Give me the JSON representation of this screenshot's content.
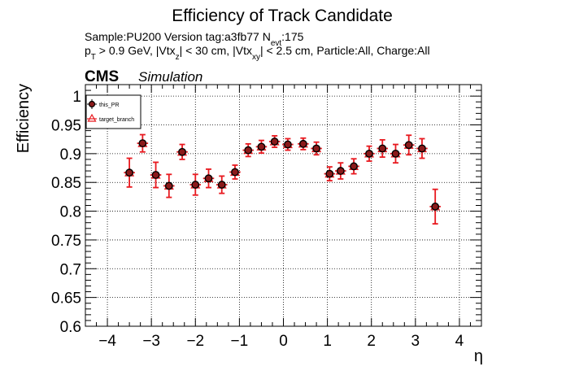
{
  "title": "Efficiency of Track Candidate",
  "info": {
    "line1_prefix": "Sample:PU200   Version tag:a3fb77  N",
    "line1_sub": "evt",
    "line1_suffix": ":175",
    "line2_p": "p",
    "line2_p_sub": "T",
    "line2_a": " > 0.9 GeV, |Vtx",
    "line2_a_sub": "z",
    "line2_b": "| < 30 cm, |Vtx",
    "line2_b_sub": "xy",
    "line2_c": "| < 2.5 cm, Particle:All, Charge:All"
  },
  "cms_label": "CMS",
  "simulation_label": "Simulation",
  "colors": {
    "series_this_pr": "#000000",
    "series_target": "#e8191f",
    "marker_fill": "#8b1a1a"
  },
  "chart_data": {
    "type": "scatter",
    "title": "Efficiency of Track Candidate",
    "xlabel": "η",
    "ylabel": "Efficiency",
    "xlim": [
      -4.5,
      4.5
    ],
    "ylim": [
      0.6,
      1.02
    ],
    "grid": true,
    "legend_position": "top-left",
    "x_ticks": [
      -4,
      -3,
      -2,
      -1,
      0,
      1,
      2,
      3,
      4
    ],
    "x_tick_labels": [
      "−4",
      "−3",
      "−2",
      "−1",
      "0",
      "1",
      "2",
      "3",
      "4"
    ],
    "y_ticks": [
      0.6,
      0.65,
      0.7,
      0.75,
      0.8,
      0.85,
      0.9,
      0.95,
      1
    ],
    "y_tick_labels": [
      "0.6",
      "0.65",
      "0.7",
      "0.75",
      "0.8",
      "0.85",
      "0.9",
      "0.95",
      "1"
    ],
    "bin_half_width": 0.125,
    "series": [
      {
        "name": "this_PR",
        "marker": "filled-circle",
        "x": [
          -3.5,
          -3.2,
          -2.9,
          -2.6,
          -2.3,
          -2.0,
          -1.7,
          -1.4,
          -1.1,
          -0.8,
          -0.5,
          -0.2,
          0.1,
          0.45,
          0.75,
          1.05,
          1.3,
          1.6,
          1.95,
          2.25,
          2.55,
          2.85,
          3.15,
          3.45
        ],
        "y": [
          0.867,
          0.918,
          0.863,
          0.844,
          0.903,
          0.846,
          0.857,
          0.846,
          0.868,
          0.906,
          0.912,
          0.921,
          0.916,
          0.917,
          0.909,
          0.865,
          0.87,
          0.878,
          0.9,
          0.909,
          0.9,
          0.915,
          0.909,
          0.808
        ],
        "yerr": [
          0.025,
          0.015,
          0.022,
          0.02,
          0.013,
          0.018,
          0.016,
          0.015,
          0.012,
          0.011,
          0.011,
          0.01,
          0.01,
          0.01,
          0.011,
          0.012,
          0.014,
          0.013,
          0.013,
          0.015,
          0.016,
          0.017,
          0.017,
          0.03
        ]
      },
      {
        "name": "target_branch",
        "marker": "open-triangle",
        "x": [
          -3.5,
          -3.2,
          -2.9,
          -2.6,
          -2.3,
          -2.0,
          -1.7,
          -1.4,
          -1.1,
          -0.8,
          -0.5,
          -0.2,
          0.1,
          0.45,
          0.75,
          1.05,
          1.3,
          1.6,
          1.95,
          2.25,
          2.55,
          2.85,
          3.15,
          3.45
        ],
        "y": [
          0.867,
          0.918,
          0.863,
          0.844,
          0.903,
          0.846,
          0.857,
          0.846,
          0.868,
          0.906,
          0.912,
          0.921,
          0.916,
          0.917,
          0.909,
          0.865,
          0.87,
          0.878,
          0.9,
          0.909,
          0.9,
          0.915,
          0.909,
          0.808
        ],
        "yerr": [
          0.025,
          0.015,
          0.022,
          0.02,
          0.013,
          0.018,
          0.016,
          0.015,
          0.012,
          0.011,
          0.011,
          0.01,
          0.01,
          0.01,
          0.011,
          0.012,
          0.014,
          0.013,
          0.013,
          0.015,
          0.016,
          0.017,
          0.017,
          0.03
        ]
      }
    ]
  }
}
